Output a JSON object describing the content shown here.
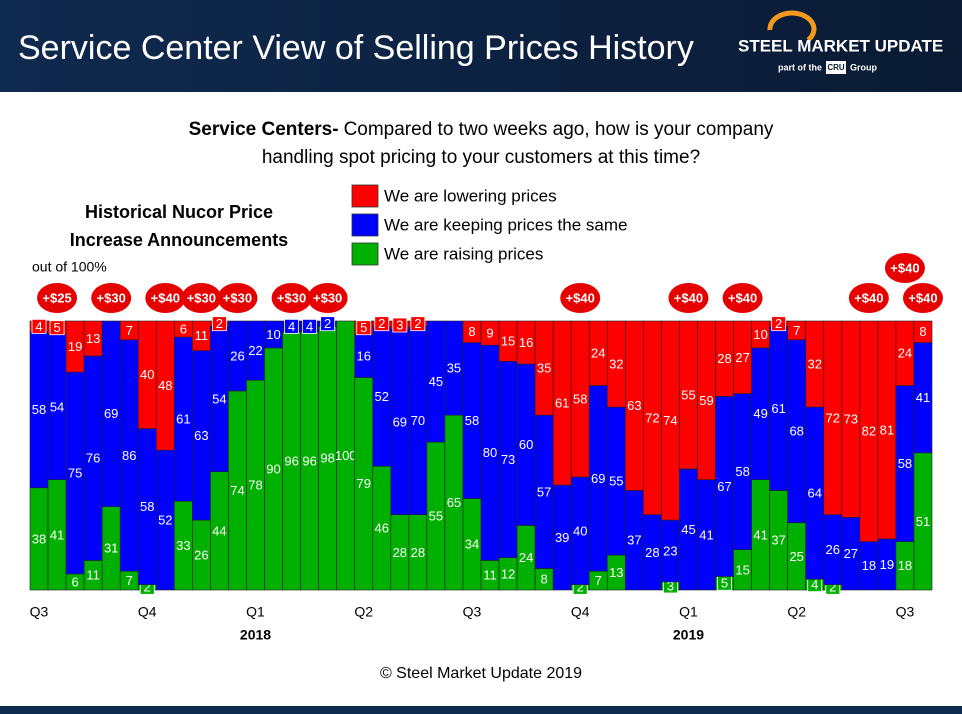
{
  "logo": {
    "brand": "STEEL MARKET UPDATE",
    "tag_before": "part of the",
    "tag_mark": "CRU",
    "tag_after": "Group"
  },
  "chart_data": {
    "type": "stacked_bar",
    "title": "Service Center View of Selling Prices History",
    "question_lead": "Service Centers-",
    "question_lines": [
      "Compared to two weeks ago, how is your company",
      "handling spot pricing to your customers at this time?"
    ],
    "side_note_lines": [
      "Historical Nucor Price",
      "Increase Announcements"
    ],
    "side_note_subtitle": "out of 100%",
    "copyright": "© Steel Market Update 2019",
    "ylim": [
      0,
      100
    ],
    "categories": [
      "Q3",
      null,
      null,
      null,
      null,
      null,
      "Q4",
      null,
      null,
      null,
      null,
      null,
      "Q1",
      null,
      null,
      null,
      null,
      null,
      "Q2",
      null,
      null,
      null,
      null,
      null,
      "Q3",
      null,
      null,
      null,
      null,
      null,
      "Q4",
      null,
      null,
      null,
      null,
      null,
      "Q1",
      null,
      null,
      null,
      null,
      null,
      "Q2",
      null,
      null,
      null,
      null,
      null,
      "Q3",
      null
    ],
    "year_labels": [
      null,
      null,
      null,
      null,
      null,
      null,
      null,
      null,
      null,
      null,
      null,
      null,
      "2018",
      null,
      null,
      null,
      null,
      null,
      null,
      null,
      null,
      null,
      null,
      null,
      null,
      null,
      null,
      null,
      null,
      null,
      null,
      null,
      null,
      null,
      null,
      null,
      "2019",
      null,
      null,
      null,
      null,
      null,
      null,
      null,
      null,
      null,
      null,
      null,
      null,
      null
    ],
    "price_increase_labels": [
      null,
      "+$25",
      null,
      null,
      "+$30",
      null,
      null,
      "+$40",
      null,
      "+$30",
      null,
      "+$30",
      null,
      null,
      "+$30",
      null,
      "+$30",
      null,
      null,
      null,
      null,
      null,
      null,
      null,
      null,
      null,
      null,
      null,
      null,
      null,
      "+$40",
      null,
      null,
      null,
      null,
      null,
      "+$40",
      null,
      null,
      "+$40",
      null,
      null,
      null,
      null,
      null,
      null,
      "+$40",
      null,
      "+$40",
      "+$40"
    ],
    "series": [
      {
        "name": "We are lowering prices",
        "color": "#ff0000",
        "values": [
          4,
          5,
          19,
          13,
          0,
          7,
          40,
          48,
          6,
          11,
          2,
          0,
          0,
          0,
          0,
          0,
          0,
          0,
          5,
          2,
          3,
          2,
          0,
          0,
          8,
          9,
          15,
          16,
          35,
          61,
          58,
          24,
          32,
          63,
          72,
          74,
          55,
          59,
          28,
          27,
          10,
          2,
          7,
          32,
          72,
          73,
          82,
          81,
          24,
          8
        ]
      },
      {
        "name": "We are keeping prices the same",
        "color": "#0000ff",
        "values": [
          58,
          54,
          75,
          76,
          69,
          86,
          58,
          52,
          61,
          63,
          54,
          26,
          22,
          10,
          4,
          4,
          2,
          0,
          16,
          52,
          69,
          70,
          45,
          35,
          58,
          80,
          73,
          60,
          57,
          39,
          40,
          69,
          55,
          37,
          28,
          23,
          45,
          41,
          67,
          58,
          49,
          61,
          68,
          64,
          26,
          27,
          18,
          19,
          58,
          41
        ]
      },
      {
        "name": "We are raising prices",
        "color": "#00b000",
        "values": [
          38,
          41,
          6,
          11,
          31,
          7,
          2,
          0,
          33,
          26,
          44,
          74,
          78,
          90,
          96,
          96,
          98,
          100,
          79,
          46,
          28,
          28,
          55,
          65,
          34,
          11,
          12,
          24,
          8,
          0,
          2,
          7,
          13,
          0,
          0,
          3,
          0,
          0,
          5,
          15,
          41,
          37,
          25,
          4,
          2,
          0,
          0,
          0,
          18,
          51
        ]
      }
    ]
  }
}
